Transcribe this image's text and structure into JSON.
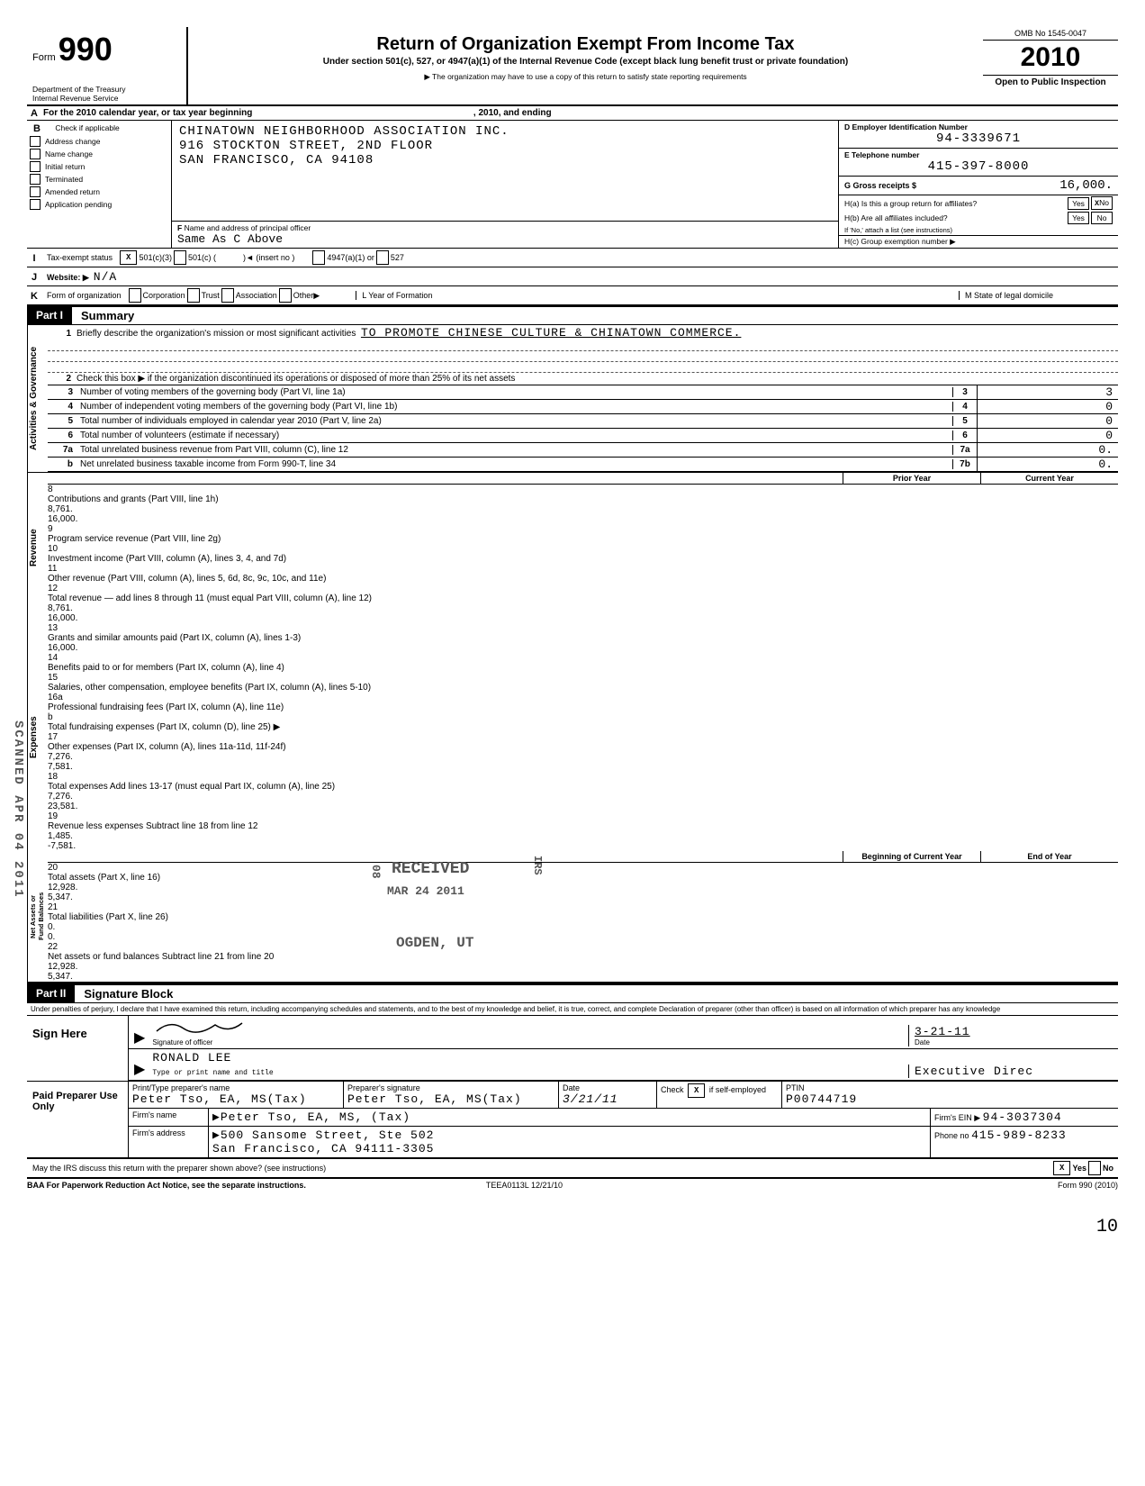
{
  "header": {
    "form_label": "Form",
    "form_number": "990",
    "dept": "Department of the Treasury\nInternal Revenue Service",
    "title": "Return of Organization Exempt From Income Tax",
    "subtitle": "Under section 501(c), 527, or 4947(a)(1) of the Internal Revenue Code (except black lung benefit trust or private foundation)",
    "note": "▶ The organization may have to use a copy of this return to satisfy state reporting requirements",
    "omb": "OMB No 1545-0047",
    "year": "2010",
    "open": "Open to Public Inspection"
  },
  "rowA": {
    "letter": "A",
    "text": "For the 2010 calendar year, or tax year beginning",
    "mid": ", 2010, and ending"
  },
  "colB": {
    "letter": "B",
    "head": "Check if applicable",
    "opts": [
      "Address change",
      "Name change",
      "Initial return",
      "Terminated",
      "Amended return",
      "Application pending"
    ]
  },
  "address": {
    "name": "CHINATOWN NEIGHBORHOOD ASSOCIATION INC.",
    "street": "916 STOCKTON STREET, 2ND FLOOR",
    "city": "SAN FRANCISCO, CA 94108"
  },
  "officerF": {
    "letter": "F",
    "label": "Name and address of principal officer",
    "value": "Same As C Above"
  },
  "colD": {
    "label": "D  Employer Identification Number",
    "value": "94-3339671"
  },
  "colE": {
    "label": "E  Telephone number",
    "value": "415-397-8000"
  },
  "colG": {
    "label": "G  Gross receipts  $",
    "value": "16,000."
  },
  "colH": {
    "a": "H(a) Is this a group return for affiliates?",
    "a_no": "X",
    "b": "H(b) Are all affiliates included?",
    "note": "If 'No,' attach a list  (see instructions)",
    "c": "H(c) Group exemption number ▶"
  },
  "rowI": {
    "letter": "I",
    "label": "Tax-exempt status",
    "x501c3": "X",
    "txt501c3": "501(c)(3)",
    "txt501c": "501(c) (",
    "insert": ")◄  (insert no )",
    "txt4947": "4947(a)(1) or",
    "txt527": "527"
  },
  "rowJ": {
    "letter": "J",
    "label": "Website: ▶",
    "value": "N/A"
  },
  "rowK": {
    "letter": "K",
    "label": "Form of organization",
    "opts": [
      "Corporation",
      "Trust",
      "Association",
      "Other▶"
    ],
    "yf": "L  Year of Formation",
    "st": "M  State of legal domicile"
  },
  "part1": {
    "pt": "Part I",
    "title": "Summary"
  },
  "gov": {
    "side": "Activities & Governance",
    "l1": {
      "num": "1",
      "desc": "Briefly describe the organization's mission or most significant activities",
      "val": "TO PROMOTE CHINESE CULTURE & CHINATOWN COMMERCE."
    },
    "l2": {
      "num": "2",
      "desc": "Check this box ▶      if the organization discontinued its operations or disposed of more than 25% of its net assets"
    },
    "rows": [
      {
        "num": "3",
        "desc": "Number of voting members of the governing body (Part VI, line 1a)",
        "code": "3",
        "val": "3"
      },
      {
        "num": "4",
        "desc": "Number of independent voting members of the governing body (Part VI, line 1b)",
        "code": "4",
        "val": "0"
      },
      {
        "num": "5",
        "desc": "Total number of individuals employed in calendar year 2010 (Part V, line 2a)",
        "code": "5",
        "val": "0"
      },
      {
        "num": "6",
        "desc": "Total number of volunteers (estimate if necessary)",
        "code": "6",
        "val": "0"
      },
      {
        "num": "7a",
        "desc": "Total unrelated business revenue from Part VIII, column (C), line 12",
        "code": "7a",
        "val": "0."
      },
      {
        "num": "b",
        "desc": "Net unrelated business taxable income from Form 990-T, line 34",
        "code": "7b",
        "val": "0."
      }
    ]
  },
  "twocol": {
    "prior": "Prior Year",
    "curr": "Current Year",
    "boy": "Beginning of Current Year",
    "eoy": "End of Year"
  },
  "rev": {
    "side": "Revenue",
    "rows": [
      {
        "num": "8",
        "desc": "Contributions and grants (Part VIII, line 1h)",
        "p": "8,761.",
        "c": "16,000."
      },
      {
        "num": "9",
        "desc": "Program service revenue (Part VIII, line 2g)",
        "p": "",
        "c": ""
      },
      {
        "num": "10",
        "desc": "Investment income (Part VIII, column (A), lines 3, 4, and 7d)",
        "p": "",
        "c": ""
      },
      {
        "num": "11",
        "desc": "Other revenue (Part VIII, column (A), lines 5, 6d, 8c, 9c, 10c, and 11e)",
        "p": "",
        "c": ""
      },
      {
        "num": "12",
        "desc": "Total revenue — add lines 8 through 11 (must equal Part VIII, column (A), line 12)",
        "p": "8,761.",
        "c": "16,000."
      }
    ]
  },
  "exp": {
    "side": "Expenses",
    "rows": [
      {
        "num": "13",
        "desc": "Grants and similar amounts paid (Part IX, column (A), lines 1-3)",
        "p": "",
        "c": "16,000."
      },
      {
        "num": "14",
        "desc": "Benefits paid to or for members (Part IX, column (A), line 4)",
        "p": "",
        "c": ""
      },
      {
        "num": "15",
        "desc": "Salaries, other compensation, employee benefits (Part IX, column (A), lines 5-10)",
        "p": "",
        "c": ""
      },
      {
        "num": "16a",
        "desc": "Professional fundraising fees (Part IX, column (A), line 11e)",
        "p": "",
        "c": ""
      },
      {
        "num": "b",
        "desc": "Total fundraising expenses (Part IX, column (D), line 25) ▶",
        "p": "",
        "c": ""
      },
      {
        "num": "17",
        "desc": "Other expenses (Part IX, column (A), lines 11a-11d, 11f-24f)",
        "p": "7,276.",
        "c": "7,581."
      },
      {
        "num": "18",
        "desc": "Total expenses  Add lines 13-17 (must equal Part IX, column (A), line 25)",
        "p": "7,276.",
        "c": "23,581."
      },
      {
        "num": "19",
        "desc": "Revenue less expenses  Subtract line 18 from line 12",
        "p": "1,485.",
        "c": "-7,581."
      }
    ]
  },
  "net": {
    "side": "Net Assets or\nFund Balances",
    "rows": [
      {
        "num": "20",
        "desc": "Total assets (Part X, line 16)",
        "p": "12,928.",
        "c": "5,347."
      },
      {
        "num": "21",
        "desc": "Total liabilities (Part X, line 26)",
        "p": "0.",
        "c": "0."
      },
      {
        "num": "22",
        "desc": "Net assets or fund balances  Subtract line 21 from line 20",
        "p": "12,928.",
        "c": "5,347."
      }
    ]
  },
  "part2": {
    "pt": "Part II",
    "title": "Signature Block"
  },
  "perjury": "Under penalties of perjury, I declare that I have examined this return, including accompanying schedules and statements, and to the best of my knowledge and belief, it is true, correct, and complete  Declaration of preparer (other than officer) is based on all information of which preparer has any knowledge",
  "sign": {
    "left": "Sign Here",
    "sig_lab": "Signature of officer",
    "date_lab": "Date",
    "date_val": "3-21-11",
    "name": "RONALD LEE",
    "title": "Executive Direc",
    "name_lab": "Type or print name and title"
  },
  "prep": {
    "left": "Paid Preparer Use Only",
    "h1": "Print/Type preparer's name",
    "h2": "Preparer's signature",
    "h3": "Date",
    "h4": "Check        if self-employed",
    "h4x": "X",
    "h5": "PTIN",
    "name": "Peter Tso, EA, MS(Tax)",
    "sig": "Peter Tso, EA, MS(Tax)",
    "date": "3/21/11",
    "ptin": "P00744719",
    "firm_lab": "Firm's name",
    "firm": "▶Peter Tso, EA, MS, (Tax)",
    "ein_lab": "Firm's EIN ▶",
    "ein": "94-3037304",
    "addr_lab": "Firm's address",
    "addr": "▶500 Sansome Street, Ste 502\nSan Francisco, CA 94111-3305",
    "ph_lab": "Phone no",
    "ph": "415-989-8233"
  },
  "discuss": {
    "q": "May the IRS discuss this return with the preparer shown above? (see instructions)",
    "yes": "X"
  },
  "footer": {
    "baa": "BAA  For Paperwork Reduction Act Notice, see the separate instructions.",
    "code": "TEEA0113L  12/21/10",
    "form": "Form 990 (2010)"
  },
  "stamps": {
    "scanned": "SCANNED APR 04 2011",
    "recv": "RECEIVED",
    "recv_date": "MAR 24 2011",
    "ogden": "OGDEN, UT",
    "irs": "IRS",
    "z": "08"
  },
  "pagenum": "10"
}
